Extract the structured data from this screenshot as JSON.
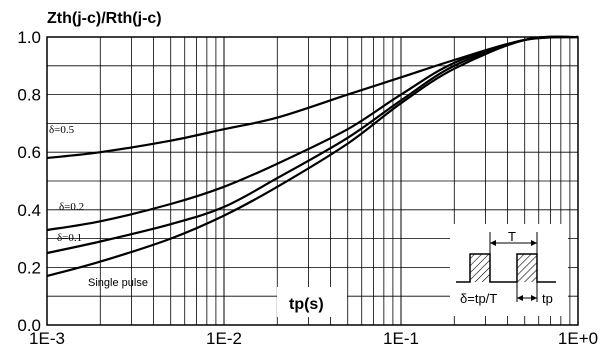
{
  "chart_data": {
    "type": "line",
    "title": "",
    "ylabel": "Zth(j-c)/Rth(j-c)",
    "xlabel": "tp(s)",
    "xscale": "log",
    "xlim": [
      0.001,
      1.0
    ],
    "ylim": [
      0.0,
      1.0
    ],
    "grid": true,
    "x_tick_labels": [
      "1E-3",
      "1E-2",
      "1E-1",
      "1E+0"
    ],
    "y_tick_labels": [
      "0.0",
      "0.2",
      "0.4",
      "0.6",
      "0.8",
      "1.0"
    ],
    "series": [
      {
        "name": "δ=0.5",
        "x": [
          0.001,
          0.002,
          0.005,
          0.01,
          0.02,
          0.05,
          0.1,
          0.2,
          0.5,
          1.0
        ],
        "y": [
          0.58,
          0.6,
          0.64,
          0.68,
          0.72,
          0.8,
          0.86,
          0.92,
          0.99,
          1.0
        ]
      },
      {
        "name": "δ=0.2",
        "x": [
          0.001,
          0.002,
          0.005,
          0.01,
          0.02,
          0.05,
          0.1,
          0.2,
          0.5,
          1.0
        ],
        "y": [
          0.33,
          0.36,
          0.42,
          0.48,
          0.56,
          0.68,
          0.8,
          0.91,
          0.99,
          1.0
        ]
      },
      {
        "name": "δ=0.1",
        "x": [
          0.001,
          0.002,
          0.005,
          0.01,
          0.02,
          0.05,
          0.1,
          0.2,
          0.5,
          1.0
        ],
        "y": [
          0.25,
          0.29,
          0.35,
          0.41,
          0.51,
          0.65,
          0.78,
          0.9,
          0.99,
          1.0
        ]
      },
      {
        "name": "Single pulse",
        "x": [
          0.001,
          0.002,
          0.005,
          0.01,
          0.02,
          0.05,
          0.1,
          0.2,
          0.5,
          1.0
        ],
        "y": [
          0.17,
          0.22,
          0.3,
          0.38,
          0.48,
          0.63,
          0.77,
          0.89,
          0.99,
          1.0
        ]
      }
    ],
    "annotations": {
      "d05": "δ=0.5",
      "d02": "δ=0.2",
      "d01": "δ=0.1",
      "single": "Single pulse",
      "inset_T": "T",
      "inset_formula": "δ=tp/T",
      "inset_tp": "tp"
    },
    "colors": {
      "line": "#000000",
      "grid": "#000000",
      "background": "#ffffff"
    }
  }
}
